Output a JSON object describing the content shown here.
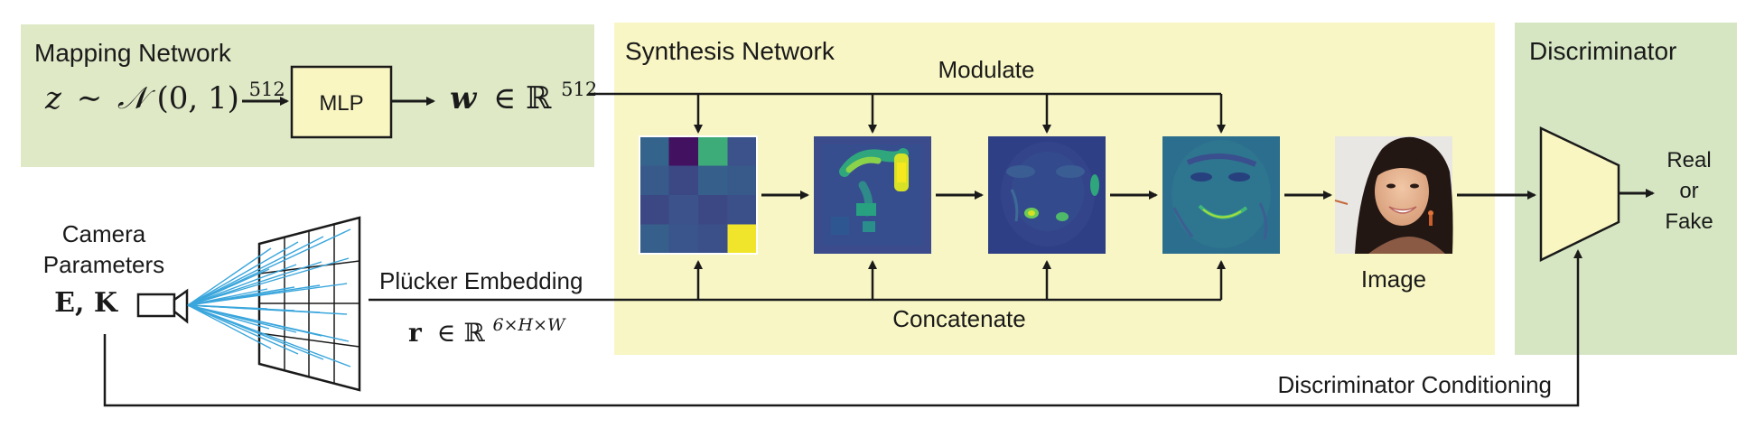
{
  "mapping_network": {
    "title": "Mapping Network",
    "z_var": "z",
    "z_sim": "∼",
    "z_dist": "𝒩",
    "z_args": "(0, 1)",
    "z_exp": "512",
    "mlp_label": "MLP",
    "w_var": "w",
    "w_in": "∈",
    "w_set": "ℝ",
    "w_exp": "512"
  },
  "synthesis_network": {
    "title": "Synthesis Network",
    "modulate_label": "Modulate",
    "concatenate_label": "Concatenate",
    "image_label": "Image"
  },
  "discriminator": {
    "title": "Discriminator",
    "output_label_1": "Real",
    "output_label_2": "or",
    "output_label_3": "Fake",
    "conditioning_label": "Discriminator Conditioning"
  },
  "camera": {
    "line1": "Camera",
    "line2": "Parameters",
    "symbols": "E, K"
  },
  "plucker": {
    "label": "Plücker Embedding",
    "r_var": "r",
    "r_in": "∈",
    "r_set": "ℝ",
    "r_exp": "6×H×W"
  },
  "colors": {
    "mapping_bg": "#dfe9c6",
    "synthesis_bg": "#f8f6c4",
    "discriminator_bg": "#d6e6c3",
    "box_fill": "#f9f6c2",
    "ray_color": "#3aa6dc",
    "line_color": "#1a1a1a"
  },
  "feature_grid": {
    "values": [
      [
        0.32,
        0.05,
        0.62,
        0.25
      ],
      [
        0.28,
        0.22,
        0.3,
        0.28
      ],
      [
        0.22,
        0.25,
        0.22,
        0.24
      ],
      [
        0.3,
        0.26,
        0.24,
        0.98
      ]
    ]
  }
}
